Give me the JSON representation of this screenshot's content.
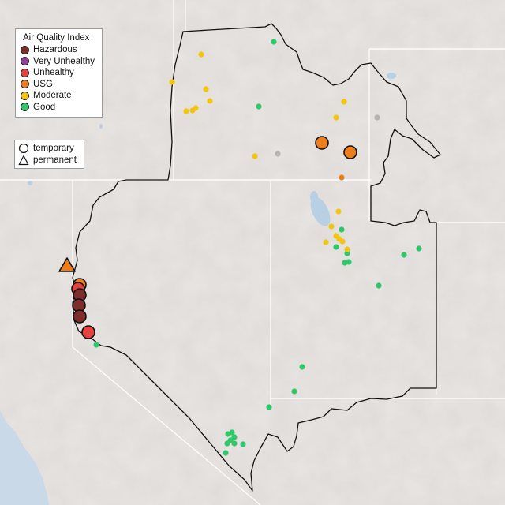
{
  "map": {
    "title": "",
    "aqi_legend": {
      "title": "Air Quality Index",
      "items": [
        {
          "label": "Hazardous",
          "color": "#7e2d2d"
        },
        {
          "label": "Very Unhealthy",
          "color": "#8f3f97"
        },
        {
          "label": "Unhealthy",
          "color": "#e8423f"
        },
        {
          "label": "USG",
          "color": "#ee7d1c"
        },
        {
          "label": "Moderate",
          "color": "#f2c511"
        },
        {
          "label": "Good",
          "color": "#2ec86a"
        }
      ]
    },
    "type_legend": {
      "items": [
        {
          "label": "temporary",
          "shape": "circle"
        },
        {
          "label": "permanent",
          "shape": "triangle"
        }
      ]
    },
    "monitor_counts": {
      "hazardous": 3,
      "unhealthy": 3,
      "usg": 4,
      "permanent_usg": 1
    }
  }
}
